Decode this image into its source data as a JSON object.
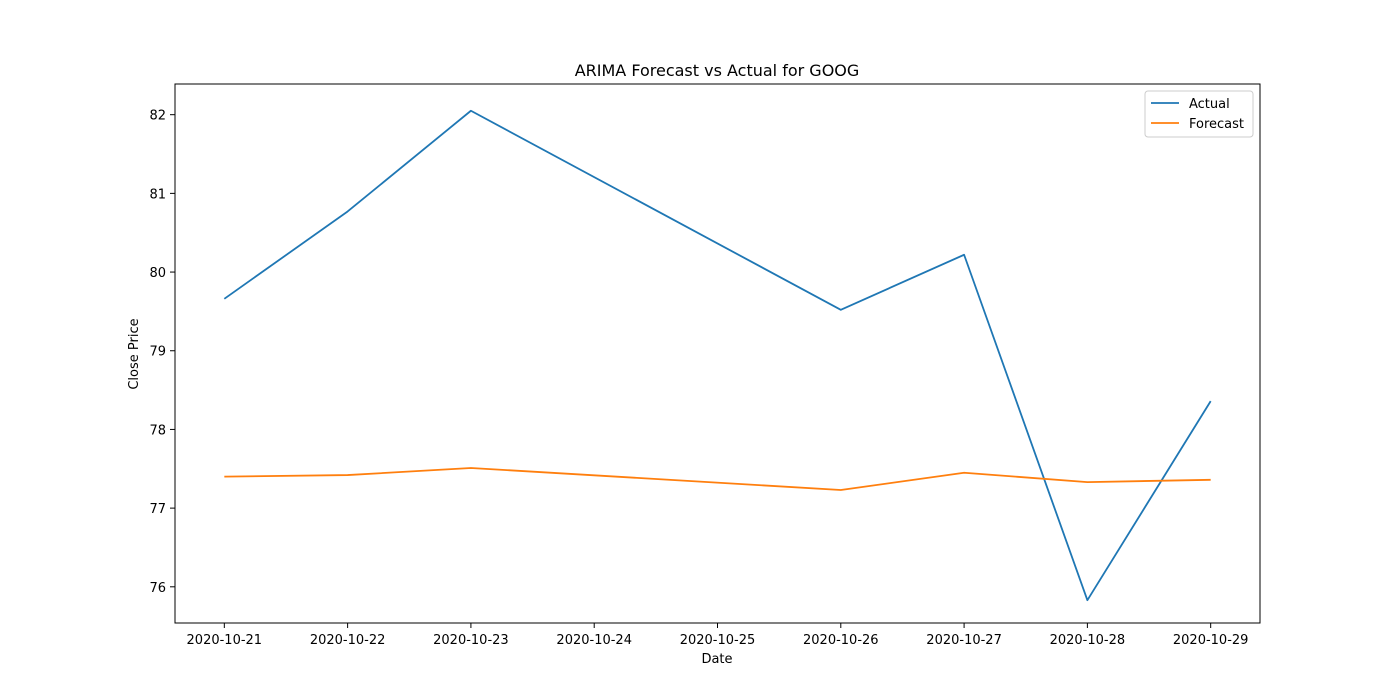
{
  "chart_data": {
    "type": "line",
    "title": "ARIMA Forecast vs Actual for GOOG",
    "xlabel": "Date",
    "ylabel": "Close Price",
    "x": [
      "2020-10-21",
      "2020-10-22",
      "2020-10-23",
      "2020-10-24",
      "2020-10-25",
      "2020-10-26",
      "2020-10-27",
      "2020-10-28",
      "2020-10-29"
    ],
    "xticks": [
      "2020-10-21",
      "2020-10-22",
      "2020-10-23",
      "2020-10-24",
      "2020-10-25",
      "2020-10-26",
      "2020-10-27",
      "2020-10-28",
      "2020-10-29"
    ],
    "yticks": [
      76,
      77,
      78,
      79,
      80,
      81,
      82
    ],
    "ylim": [
      75.54,
      82.39
    ],
    "grid": false,
    "legend_position": "top-right",
    "series": [
      {
        "name": "Actual",
        "color": "#1f77b4",
        "points": [
          {
            "x": "2020-10-21",
            "y": 79.66
          },
          {
            "x": "2020-10-22",
            "y": 80.77
          },
          {
            "x": "2020-10-23",
            "y": 82.05
          },
          {
            "x": "2020-10-26",
            "y": 79.52
          },
          {
            "x": "2020-10-27",
            "y": 80.22
          },
          {
            "x": "2020-10-28",
            "y": 75.83
          },
          {
            "x": "2020-10-29",
            "y": 78.36
          }
        ]
      },
      {
        "name": "Forecast",
        "color": "#ff7f0e",
        "points": [
          {
            "x": "2020-10-21",
            "y": 77.4
          },
          {
            "x": "2020-10-22",
            "y": 77.42
          },
          {
            "x": "2020-10-23",
            "y": 77.51
          },
          {
            "x": "2020-10-26",
            "y": 77.23
          },
          {
            "x": "2020-10-27",
            "y": 77.45
          },
          {
            "x": "2020-10-28",
            "y": 77.33
          },
          {
            "x": "2020-10-29",
            "y": 77.36
          }
        ]
      }
    ]
  }
}
